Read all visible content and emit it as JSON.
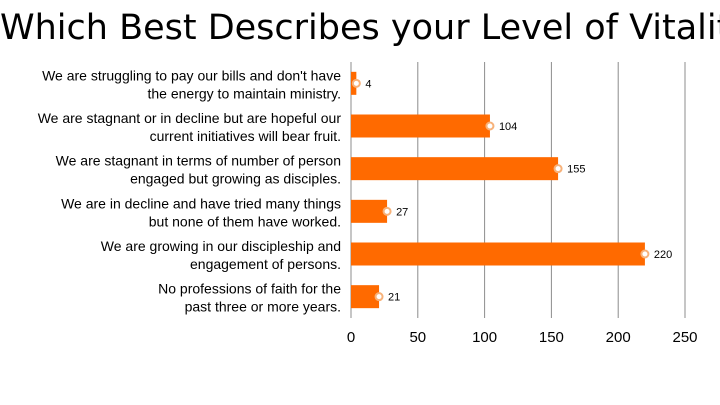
{
  "title": "Which Best Describes your Level of Vitality",
  "colors": {
    "bar": "#ff6a00",
    "marker": "#f7b27a",
    "grid": "#8c8c8c",
    "axis": "#8c8c8c"
  },
  "chart_data": {
    "type": "bar",
    "orientation": "horizontal",
    "title": "Which Best Describes your Level of Vitality",
    "categories": [
      [
        "We are struggling to pay our bills and don't have",
        "the energy to maintain ministry."
      ],
      [
        "We are stagnant or in decline but are hopeful our",
        "current initiatives will bear fruit."
      ],
      [
        "We are stagnant in terms of number of person",
        "engaged but growing as disciples."
      ],
      [
        "We are in decline and have tried many things",
        "but none of them have worked."
      ],
      [
        "We are growing in our discipleship and",
        "engagement of persons."
      ],
      [
        "No professions of faith for the",
        "past three or more years."
      ]
    ],
    "values": [
      4,
      104,
      155,
      27,
      220,
      21
    ],
    "data_labels": [
      "4",
      "104",
      "155",
      "27",
      "220",
      "21"
    ],
    "xlim": [
      0,
      250
    ],
    "xticks": [
      "0",
      "50",
      "100",
      "150",
      "200",
      "250"
    ],
    "grid": true
  }
}
